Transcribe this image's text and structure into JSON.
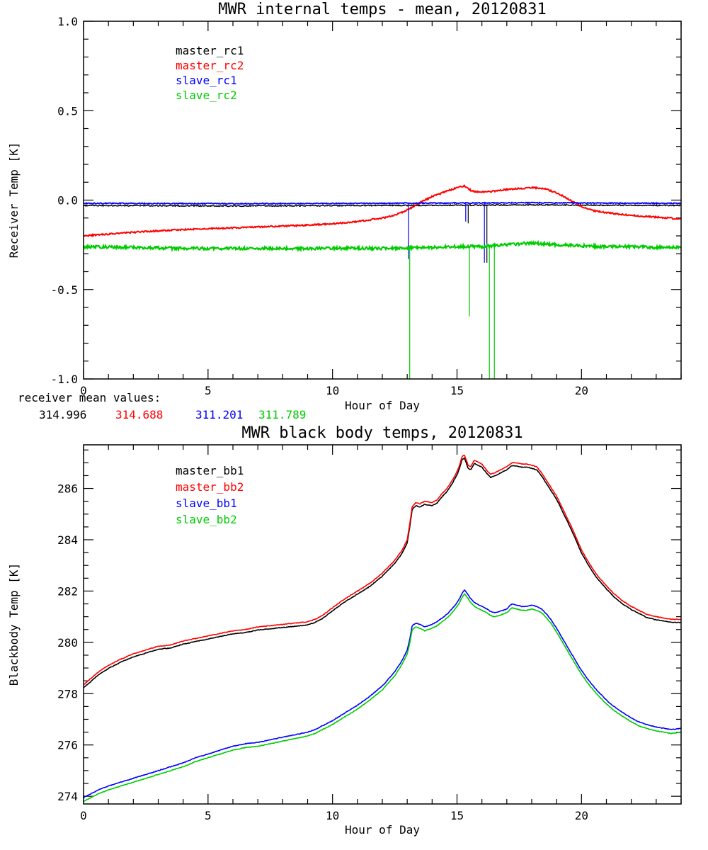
{
  "page": {
    "background": "#ffffff"
  },
  "annotation": {
    "label": "receiver mean values:",
    "values": [
      {
        "text": "314.996",
        "color": "#000000"
      },
      {
        "text": "314.688",
        "color": "#ff0000"
      },
      {
        "text": "311.201",
        "color": "#0000ff"
      },
      {
        "text": "311.789",
        "color": "#00cc00"
      }
    ]
  },
  "chart_data": [
    {
      "type": "line",
      "title": "MWR internal temps - mean, 20120831",
      "xlabel": "Hour of Day",
      "ylabel": "Receiver Temp [K]",
      "xlim": [
        0,
        24
      ],
      "ylim": [
        -1.0,
        1.0
      ],
      "xticks": [
        0,
        5,
        10,
        15,
        20
      ],
      "xtick_labels": [
        "0",
        "5",
        "10",
        "15",
        "20"
      ],
      "yticks": [
        -1.0,
        -0.5,
        0.0,
        0.5,
        1.0
      ],
      "ytick_labels": [
        "-1.0",
        "-0.5",
        "0.0",
        "0.5",
        "1.0"
      ],
      "x_minor": 1,
      "y_minor": 0.1,
      "grid": false,
      "legend_position": "upper-left-inside",
      "legend": [
        {
          "label": "master_rc1",
          "color": "#000000"
        },
        {
          "label": "master_rc2",
          "color": "#ff0000"
        },
        {
          "label": "slave_rc1",
          "color": "#0000ff"
        },
        {
          "label": "slave_rc2",
          "color": "#00cc00"
        }
      ],
      "series": [
        {
          "name": "master_rc1",
          "color": "#000000",
          "width": 1.5,
          "noise": 0.003,
          "seed": 1,
          "x": [
            0,
            6,
            12,
            18,
            24
          ],
          "y": [
            -0.03,
            -0.033,
            -0.03,
            -0.027,
            -0.03
          ],
          "spikes": [
            {
              "x": 15.45,
              "y": -0.13
            },
            {
              "x": 16.2,
              "y": -0.35
            }
          ]
        },
        {
          "name": "master_rc2",
          "color": "#ff0000",
          "width": 2,
          "noise": 0.004,
          "seed": 2,
          "x": [
            0,
            1,
            2,
            3,
            4,
            5,
            6,
            7,
            8,
            9,
            10,
            11,
            12,
            12.5,
            13,
            13.5,
            14,
            14.5,
            15,
            15.3,
            15.6,
            16,
            16.5,
            17,
            17.5,
            18,
            18.5,
            19,
            19.3,
            19.6,
            20,
            20.5,
            21,
            21.5,
            22,
            22.5,
            23,
            23.5,
            24
          ],
          "y": [
            -0.2,
            -0.19,
            -0.18,
            -0.172,
            -0.165,
            -0.16,
            -0.155,
            -0.15,
            -0.145,
            -0.14,
            -0.132,
            -0.12,
            -0.1,
            -0.085,
            -0.055,
            -0.015,
            0.02,
            0.045,
            0.07,
            0.08,
            0.05,
            0.045,
            0.05,
            0.06,
            0.065,
            0.07,
            0.065,
            0.04,
            0.02,
            -0.005,
            -0.035,
            -0.06,
            -0.07,
            -0.078,
            -0.085,
            -0.09,
            -0.095,
            -0.1,
            -0.105
          ],
          "spikes": []
        },
        {
          "name": "slave_rc1",
          "color": "#0000ff",
          "width": 1.8,
          "noise": 0.003,
          "seed": 3,
          "x": [
            0,
            6,
            12,
            18,
            24
          ],
          "y": [
            -0.018,
            -0.02,
            -0.018,
            -0.015,
            -0.018
          ],
          "spikes": [
            {
              "x": 13.05,
              "y": -0.33
            },
            {
              "x": 15.35,
              "y": -0.12
            },
            {
              "x": 16.1,
              "y": -0.35
            }
          ]
        },
        {
          "name": "slave_rc2",
          "color": "#00cc00",
          "width": 2.2,
          "noise": 0.008,
          "seed": 4,
          "x": [
            0,
            2,
            4,
            6,
            8,
            10,
            12,
            14,
            15,
            16,
            17,
            17.5,
            18,
            19,
            20,
            21,
            22,
            23,
            24
          ],
          "y": [
            -0.26,
            -0.265,
            -0.27,
            -0.27,
            -0.27,
            -0.27,
            -0.27,
            -0.265,
            -0.26,
            -0.26,
            -0.25,
            -0.245,
            -0.24,
            -0.25,
            -0.255,
            -0.26,
            -0.26,
            -0.265,
            -0.265
          ],
          "spikes": [
            {
              "x": 13.1,
              "y": -1.0
            },
            {
              "x": 15.5,
              "y": -0.65
            },
            {
              "x": 16.3,
              "y": -1.0
            },
            {
              "x": 16.5,
              "y": -1.0
            }
          ]
        }
      ]
    },
    {
      "type": "line",
      "title": "MWR black body temps, 20120831",
      "xlabel": "Hour of Day",
      "ylabel": "Blackbody Temp [K]",
      "xlim": [
        0,
        24
      ],
      "ylim": [
        273.7,
        287.7
      ],
      "xticks": [
        0,
        5,
        10,
        15,
        20
      ],
      "xtick_labels": [
        "0",
        "5",
        "10",
        "15",
        "20"
      ],
      "yticks": [
        274,
        276,
        278,
        280,
        282,
        284,
        286
      ],
      "ytick_labels": [
        "274",
        "276",
        "278",
        "280",
        "282",
        "284",
        "286"
      ],
      "x_minor": 1,
      "y_minor": 0.5,
      "grid": false,
      "legend_position": "upper-left-inside",
      "legend": [
        {
          "label": "master_bb1",
          "color": "#000000"
        },
        {
          "label": "master_bb2",
          "color": "#ff0000"
        },
        {
          "label": "slave_bb1",
          "color": "#0000ff"
        },
        {
          "label": "slave_bb2",
          "color": "#00cc00"
        }
      ],
      "series": [
        {
          "name": "master_bb1",
          "color": "#000000",
          "width": 1.6,
          "noise": 0.012,
          "seed": 5,
          "x": [
            0,
            0.3,
            0.6,
            1,
            1.5,
            2,
            2.5,
            3,
            3.5,
            4,
            4.5,
            5,
            5.5,
            6,
            6.5,
            7,
            7.5,
            8,
            8.5,
            9,
            9.3,
            9.6,
            10,
            10.5,
            11,
            11.5,
            12,
            12.5,
            12.8,
            13,
            13.1,
            13.2,
            13.35,
            13.5,
            13.7,
            14,
            14.2,
            14.4,
            14.6,
            14.8,
            15,
            15.1,
            15.2,
            15.3,
            15.45,
            15.55,
            15.7,
            15.8,
            16,
            16.2,
            16.35,
            16.5,
            16.7,
            17,
            17.2,
            17.4,
            17.6,
            17.8,
            18,
            18.2,
            18.4,
            18.6,
            18.8,
            19,
            19.3,
            19.6,
            20,
            20.3,
            20.6,
            21,
            21.3,
            21.6,
            22,
            22.3,
            22.6,
            23,
            23.3,
            23.6,
            24
          ],
          "y": [
            278.23,
            278.48,
            278.73,
            278.98,
            279.23,
            279.43,
            279.58,
            279.73,
            279.78,
            279.93,
            280.03,
            280.13,
            280.23,
            280.33,
            280.38,
            280.48,
            280.53,
            280.58,
            280.63,
            280.68,
            280.78,
            280.93,
            281.23,
            281.58,
            281.88,
            282.18,
            282.58,
            283.08,
            283.48,
            283.88,
            284.48,
            285.18,
            285.33,
            285.28,
            285.38,
            285.33,
            285.43,
            285.68,
            285.88,
            286.18,
            286.53,
            286.78,
            287.13,
            287.18,
            286.78,
            286.73,
            286.98,
            286.93,
            286.83,
            286.58,
            286.43,
            286.48,
            286.58,
            286.73,
            286.88,
            286.88,
            286.83,
            286.83,
            286.78,
            286.73,
            286.48,
            286.18,
            285.88,
            285.58,
            284.98,
            284.38,
            283.48,
            282.98,
            282.53,
            282.08,
            281.78,
            281.53,
            281.28,
            281.13,
            280.98,
            280.88,
            280.83,
            280.78,
            280.78
          ],
          "spikes": []
        },
        {
          "name": "master_bb2",
          "color": "#ff0000",
          "width": 1.6,
          "noise": 0.012,
          "seed": 6,
          "x": [
            0,
            0.3,
            0.6,
            1,
            1.5,
            2,
            2.5,
            3,
            3.5,
            4,
            4.5,
            5,
            5.5,
            6,
            6.5,
            7,
            7.5,
            8,
            8.5,
            9,
            9.3,
            9.6,
            10,
            10.5,
            11,
            11.5,
            12,
            12.5,
            12.8,
            13,
            13.1,
            13.2,
            13.35,
            13.5,
            13.7,
            14,
            14.2,
            14.4,
            14.6,
            14.8,
            15,
            15.1,
            15.2,
            15.3,
            15.45,
            15.55,
            15.7,
            15.8,
            16,
            16.2,
            16.35,
            16.5,
            16.7,
            17,
            17.2,
            17.4,
            17.6,
            17.8,
            18,
            18.2,
            18.4,
            18.6,
            18.8,
            19,
            19.3,
            19.6,
            20,
            20.3,
            20.6,
            21,
            21.3,
            21.6,
            22,
            22.3,
            22.6,
            23,
            23.3,
            23.6,
            24
          ],
          "y": [
            278.35,
            278.6,
            278.85,
            279.1,
            279.35,
            279.55,
            279.7,
            279.85,
            279.9,
            280.05,
            280.15,
            280.25,
            280.35,
            280.45,
            280.5,
            280.6,
            280.65,
            280.7,
            280.75,
            280.8,
            280.9,
            281.05,
            281.35,
            281.7,
            282.0,
            282.3,
            282.7,
            283.2,
            283.6,
            284.0,
            284.6,
            285.3,
            285.45,
            285.4,
            285.5,
            285.45,
            285.55,
            285.8,
            286.0,
            286.3,
            286.65,
            286.9,
            287.25,
            287.3,
            286.9,
            286.85,
            287.1,
            287.05,
            286.95,
            286.7,
            286.55,
            286.6,
            286.7,
            286.85,
            287.0,
            287.0,
            286.95,
            286.95,
            286.9,
            286.85,
            286.6,
            286.3,
            286.0,
            285.7,
            285.1,
            284.5,
            283.6,
            283.1,
            282.65,
            282.2,
            281.9,
            281.65,
            281.4,
            281.25,
            281.1,
            281.0,
            280.95,
            280.9,
            280.9
          ],
          "spikes": []
        },
        {
          "name": "slave_bb1",
          "color": "#0000ff",
          "width": 1.6,
          "noise": 0.012,
          "seed": 7,
          "x": [
            0,
            0.3,
            0.6,
            1,
            1.5,
            2,
            2.5,
            3,
            3.5,
            4,
            4.5,
            5,
            5.5,
            6,
            6.5,
            7,
            7.5,
            8,
            8.5,
            9,
            9.3,
            9.6,
            10,
            10.5,
            11,
            11.5,
            12,
            12.5,
            12.8,
            13,
            13.1,
            13.2,
            13.35,
            13.5,
            13.7,
            14,
            14.2,
            14.4,
            14.6,
            14.8,
            15,
            15.1,
            15.2,
            15.3,
            15.45,
            15.55,
            15.7,
            15.8,
            16,
            16.2,
            16.35,
            16.5,
            16.7,
            17,
            17.2,
            17.4,
            17.6,
            17.8,
            18,
            18.2,
            18.4,
            18.6,
            18.8,
            19,
            19.3,
            19.6,
            20,
            20.3,
            20.6,
            21,
            21.3,
            21.6,
            22,
            22.3,
            22.6,
            23,
            23.3,
            23.6,
            24
          ],
          "y": [
            273.95,
            274.1,
            274.25,
            274.4,
            274.55,
            274.7,
            274.85,
            275.0,
            275.15,
            275.3,
            275.5,
            275.65,
            275.8,
            275.95,
            276.05,
            276.1,
            276.2,
            276.3,
            276.4,
            276.5,
            276.6,
            276.75,
            276.95,
            277.25,
            277.55,
            277.9,
            278.3,
            278.85,
            279.3,
            279.7,
            280.1,
            280.65,
            280.75,
            280.7,
            280.6,
            280.7,
            280.8,
            280.95,
            281.1,
            281.3,
            281.55,
            281.7,
            281.9,
            282.05,
            281.85,
            281.7,
            281.55,
            281.5,
            281.4,
            281.3,
            281.2,
            281.15,
            281.2,
            281.3,
            281.5,
            281.45,
            281.4,
            281.4,
            281.45,
            281.4,
            281.3,
            281.1,
            280.85,
            280.55,
            280.05,
            279.55,
            278.9,
            278.5,
            278.15,
            277.75,
            277.5,
            277.3,
            277.05,
            276.9,
            276.8,
            276.7,
            276.65,
            276.6,
            276.65
          ],
          "spikes": []
        },
        {
          "name": "slave_bb2",
          "color": "#00cc00",
          "width": 1.6,
          "noise": 0.012,
          "seed": 8,
          "x": [
            0,
            0.3,
            0.6,
            1,
            1.5,
            2,
            2.5,
            3,
            3.5,
            4,
            4.5,
            5,
            5.5,
            6,
            6.5,
            7,
            7.5,
            8,
            8.5,
            9,
            9.3,
            9.6,
            10,
            10.5,
            11,
            11.5,
            12,
            12.5,
            12.8,
            13,
            13.1,
            13.2,
            13.35,
            13.5,
            13.7,
            14,
            14.2,
            14.4,
            14.6,
            14.8,
            15,
            15.1,
            15.2,
            15.3,
            15.45,
            15.55,
            15.7,
            15.8,
            16,
            16.2,
            16.35,
            16.5,
            16.7,
            17,
            17.2,
            17.4,
            17.6,
            17.8,
            18,
            18.2,
            18.4,
            18.6,
            18.8,
            19,
            19.3,
            19.6,
            20,
            20.3,
            20.6,
            21,
            21.3,
            21.6,
            22,
            22.3,
            22.6,
            23,
            23.3,
            23.6,
            24
          ],
          "y": [
            273.8,
            273.95,
            274.1,
            274.25,
            274.4,
            274.55,
            274.7,
            274.85,
            275.0,
            275.15,
            275.35,
            275.5,
            275.65,
            275.8,
            275.9,
            275.95,
            276.05,
            276.15,
            276.25,
            276.35,
            276.45,
            276.6,
            276.8,
            277.1,
            277.4,
            277.75,
            278.15,
            278.7,
            279.15,
            279.55,
            279.95,
            280.5,
            280.6,
            280.55,
            280.45,
            280.55,
            280.65,
            280.8,
            280.95,
            281.15,
            281.4,
            281.55,
            281.75,
            281.9,
            281.7,
            281.55,
            281.4,
            281.35,
            281.25,
            281.15,
            281.05,
            281.0,
            281.05,
            281.15,
            281.35,
            281.3,
            281.25,
            281.25,
            281.3,
            281.25,
            281.15,
            280.95,
            280.7,
            280.4,
            279.9,
            279.4,
            278.75,
            278.35,
            278.0,
            277.6,
            277.35,
            277.15,
            276.9,
            276.75,
            276.65,
            276.55,
            276.5,
            276.45,
            276.5
          ],
          "spikes": []
        }
      ]
    }
  ]
}
